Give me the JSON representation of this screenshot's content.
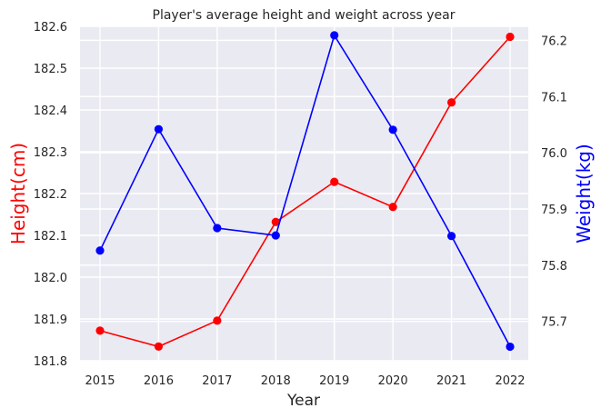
{
  "chart_data": {
    "type": "line",
    "title": "Player's average height and weight across year",
    "xlabel": "Year",
    "ylabel_left": "Height(cm)",
    "ylabel_right": "Weight(kg)",
    "categories": [
      "2015",
      "2016",
      "2017",
      "2018",
      "2019",
      "2020",
      "2021",
      "2022"
    ],
    "ylim_left": [
      181.8,
      182.6
    ],
    "ylim_right": [
      75.63,
      76.225
    ],
    "yticks_left": [
      "181.8",
      "181.9",
      "182.0",
      "182.1",
      "182.2",
      "182.3",
      "182.4",
      "182.5",
      "182.6"
    ],
    "yticks_right": [
      "75.7",
      "75.8",
      "75.9",
      "76.0",
      "76.1",
      "76.2"
    ],
    "grid": true,
    "background": "#EAEAF2",
    "series": [
      {
        "name": "Height(cm)",
        "axis": "left",
        "color": "#FF0000",
        "values": [
          181.872,
          181.834,
          181.896,
          182.132,
          182.228,
          182.168,
          182.418,
          182.575
        ]
      },
      {
        "name": "Weight(kg)",
        "axis": "right",
        "color": "#0000FF",
        "values": [
          75.826,
          76.042,
          75.866,
          75.853,
          76.209,
          76.041,
          75.852,
          75.655
        ]
      }
    ]
  }
}
